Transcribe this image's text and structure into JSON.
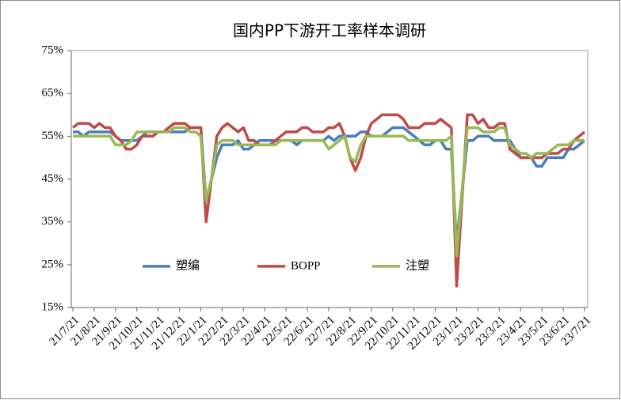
{
  "chart_data": {
    "type": "line",
    "title": "国内PP下游开工率样本调研",
    "categories": [
      "21/7/21",
      null,
      null,
      null,
      "21/8/21",
      null,
      null,
      null,
      "21/9/21",
      null,
      null,
      null,
      "21/10/21",
      null,
      null,
      null,
      "21/11/21",
      null,
      null,
      null,
      "21/12/21",
      null,
      null,
      null,
      "22/1/21",
      null,
      null,
      null,
      "22/2/21",
      null,
      null,
      null,
      "22/3/21",
      null,
      null,
      null,
      "22/4/21",
      null,
      null,
      null,
      "22/5/21",
      null,
      null,
      null,
      "22/6/21",
      null,
      null,
      null,
      "22/7/21",
      null,
      null,
      null,
      "22/8/21",
      null,
      null,
      null,
      "22/9/21",
      null,
      null,
      null,
      "22/10/21",
      null,
      null,
      null,
      "22/11/21",
      null,
      null,
      null,
      "22/12/21",
      null,
      null,
      null,
      "23/1/21",
      null,
      null,
      null,
      "23/2/21",
      null,
      null,
      null,
      "23/3/21",
      null,
      null,
      null,
      "23/4/21",
      null,
      null,
      null,
      "23/5/21",
      null,
      null,
      null,
      "23/6/21",
      null,
      null,
      null,
      "23/7/21"
    ],
    "series": [
      {
        "name": "塑编",
        "color": "#4a7ebb",
        "values": [
          56,
          56,
          55,
          56,
          56,
          56,
          56,
          56,
          55,
          54,
          54,
          54,
          54,
          55,
          56,
          56,
          56,
          56,
          56,
          56,
          56,
          56,
          57,
          57,
          57,
          40,
          45,
          50,
          53,
          53,
          53,
          54,
          52,
          52,
          53,
          54,
          54,
          54,
          54,
          54,
          54,
          54,
          53,
          54,
          54,
          54,
          54,
          54,
          55,
          54,
          55,
          55,
          55,
          55,
          56,
          56,
          55,
          55,
          55,
          56,
          57,
          57,
          57,
          56,
          55,
          54,
          53,
          53,
          54,
          54,
          52,
          52,
          30,
          42,
          54,
          54,
          55,
          55,
          55,
          54,
          54,
          54,
          54,
          52,
          50,
          50,
          50,
          48,
          48,
          50,
          50,
          50,
          50,
          52,
          52,
          53,
          54
        ]
      },
      {
        "name": "BOPP",
        "color": "#be4b48",
        "values": [
          57,
          58,
          58,
          58,
          57,
          58,
          57,
          57,
          55,
          54,
          52,
          52,
          53,
          55,
          55,
          55,
          56,
          56,
          57,
          58,
          58,
          58,
          57,
          57,
          57,
          35,
          45,
          55,
          57,
          58,
          57,
          56,
          57,
          54,
          54,
          53,
          53,
          53,
          54,
          55,
          56,
          56,
          56,
          57,
          57,
          56,
          56,
          56,
          57,
          57,
          58,
          55,
          50,
          47,
          50,
          55,
          58,
          59,
          60,
          60,
          60,
          60,
          59,
          57,
          57,
          57,
          58,
          58,
          58,
          59,
          58,
          57,
          20,
          40,
          60,
          60,
          58,
          59,
          57,
          57,
          58,
          58,
          52,
          51,
          50,
          50,
          50,
          50,
          50,
          51,
          51,
          51,
          52,
          52,
          54,
          55,
          56
        ]
      },
      {
        "name": "注塑",
        "color": "#98b954",
        "values": [
          55,
          55,
          55,
          55,
          55,
          55,
          55,
          55,
          53,
          53,
          53,
          54,
          56,
          56,
          56,
          56,
          56,
          56,
          56,
          57,
          57,
          57,
          56,
          56,
          55,
          40,
          45,
          53,
          54,
          54,
          54,
          53,
          53,
          53,
          53,
          53,
          53,
          53,
          53,
          54,
          54,
          54,
          54,
          54,
          54,
          54,
          54,
          54,
          52,
          53,
          54,
          55,
          50,
          49,
          53,
          55,
          55,
          55,
          55,
          55,
          55,
          55,
          55,
          54,
          54,
          54,
          54,
          54,
          54,
          54,
          54,
          55,
          27,
          42,
          57,
          57,
          57,
          56,
          56,
          56,
          57,
          57,
          53,
          52,
          51,
          51,
          50,
          51,
          51,
          51,
          52,
          53,
          53,
          53,
          54,
          54,
          54
        ]
      }
    ],
    "ylim": [
      15,
      75
    ],
    "yticks": [
      {
        "value": 15,
        "label": "15%"
      },
      {
        "value": 25,
        "label": "25%"
      },
      {
        "value": 35,
        "label": "35%"
      },
      {
        "value": 45,
        "label": "45%"
      },
      {
        "value": 55,
        "label": "55%"
      },
      {
        "value": 65,
        "label": "65%"
      },
      {
        "value": 75,
        "label": "75%"
      }
    ],
    "legend": "center"
  }
}
